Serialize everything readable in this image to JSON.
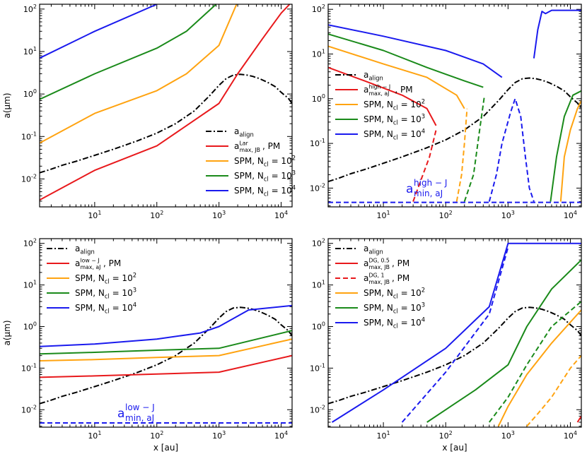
{
  "figure": {
    "ylabel": "a(μm)",
    "xlabel": "x [au]"
  },
  "chart_data": [
    {
      "type": "line",
      "panel": "top-left",
      "xscale": "log",
      "yscale": "log",
      "xlim": [
        1.3,
        15000
      ],
      "ylim": [
        0.0022,
        130
      ],
      "ylabel": "a(μm)",
      "xlabel": "",
      "legend_position": "lower-right",
      "legend": [
        {
          "main": "a",
          "sub": "align",
          "sup": "",
          "tail": ""
        },
        {
          "main": "a",
          "sub": "max, JB",
          "sup": "Lar",
          "tail": ", PM"
        },
        {
          "main": "SPM, N",
          "sub": "cl",
          "sup": "2",
          "tail": " = 10"
        },
        {
          "main": "SPM, N",
          "sub": "cl",
          "sup": "3",
          "tail": " = 10"
        },
        {
          "main": "SPM, N",
          "sub": "cl",
          "sup": "4",
          "tail": " = 10"
        }
      ],
      "annotation": null,
      "series": [
        {
          "name": "a_align",
          "color": "#000000",
          "dash": "dashdot",
          "x": [
            1.3,
            2,
            3,
            5,
            10,
            20,
            50,
            100,
            200,
            400,
            700,
            1000,
            1300,
            1700,
            2200,
            2800,
            3500,
            4500,
            6000,
            8000,
            10000,
            13000,
            15000
          ],
          "y": [
            0.014,
            0.017,
            0.021,
            0.026,
            0.036,
            0.05,
            0.08,
            0.12,
            0.2,
            0.4,
            0.9,
            1.6,
            2.3,
            2.8,
            2.9,
            2.8,
            2.6,
            2.3,
            1.9,
            1.5,
            1.1,
            0.8,
            0.6
          ]
        },
        {
          "name": "a_max,JB^Lar, PM",
          "color": "#e8191c",
          "dash": "solid",
          "x": [
            1.3,
            10,
            100,
            1000,
            2000,
            5000,
            10000,
            15000
          ],
          "y": [
            0.0032,
            0.016,
            0.06,
            0.6,
            3,
            20,
            80,
            150
          ]
        },
        {
          "name": "SPM, Ncl = 10^2",
          "color": "#ffa310",
          "dash": "solid",
          "x": [
            1.3,
            10,
            100,
            300,
            1000,
            2000
          ],
          "y": [
            0.07,
            0.35,
            1.2,
            3,
            14,
            150
          ]
        },
        {
          "name": "SPM, Ncl = 10^3",
          "color": "#1a8a1a",
          "dash": "solid",
          "x": [
            1.3,
            10,
            100,
            300,
            1000
          ],
          "y": [
            0.75,
            3,
            12,
            30,
            150
          ]
        },
        {
          "name": "SPM, Ncl = 10^4",
          "color": "#1a1aee",
          "dash": "solid",
          "x": [
            1.3,
            10,
            100
          ],
          "y": [
            7,
            30,
            130
          ]
        }
      ]
    },
    {
      "type": "line",
      "panel": "top-right",
      "xscale": "log",
      "yscale": "log",
      "xlim": [
        1.3,
        15000
      ],
      "ylim": [
        0.0038,
        130
      ],
      "ylabel": "",
      "xlabel": "",
      "legend_position": "center-left",
      "legend": [
        {
          "main": "a",
          "sub": "align",
          "sup": "",
          "tail": ""
        },
        {
          "main": "a",
          "sub": "max, aJ",
          "sup": "high − J",
          "tail": ", PM"
        },
        {
          "main": "SPM, N",
          "sub": "cl",
          "sup": "2",
          "tail": " = 10"
        },
        {
          "main": "SPM, N",
          "sub": "cl",
          "sup": "3",
          "tail": " = 10"
        },
        {
          "main": "SPM, N",
          "sub": "cl",
          "sup": "4",
          "tail": " = 10"
        }
      ],
      "annotation": {
        "main": "a",
        "sub": "min, aJ",
        "sup": "high − J",
        "color": "#1a1aee"
      },
      "series": [
        {
          "name": "a_align",
          "color": "#000000",
          "dash": "dashdot",
          "x": [
            1.3,
            2,
            3,
            5,
            10,
            20,
            50,
            100,
            200,
            400,
            700,
            1000,
            1300,
            1700,
            2200,
            2800,
            3500,
            4500,
            6000,
            8000,
            10000,
            13000,
            15000
          ],
          "y": [
            0.014,
            0.017,
            0.021,
            0.026,
            0.036,
            0.05,
            0.08,
            0.12,
            0.2,
            0.4,
            0.9,
            1.6,
            2.3,
            2.8,
            2.9,
            2.8,
            2.6,
            2.3,
            1.9,
            1.5,
            1.1,
            0.8,
            0.6
          ]
        },
        {
          "name": "a_max,aJ^high-J, PM",
          "color": "#e8191c",
          "dash": "solid",
          "x": [
            1.3,
            5,
            20,
            50,
            70
          ],
          "y": [
            5,
            2.5,
            1.2,
            0.6,
            0.25
          ]
        },
        {
          "name": "a_max,aJ^high-J, PM (dashed)",
          "color": "#e8191c",
          "dash": "dashed",
          "x": [
            30,
            40,
            55,
            70
          ],
          "y": [
            0.005,
            0.015,
            0.05,
            0.2
          ]
        },
        {
          "name": "SPM, Ncl = 10^2",
          "color": "#ffa310",
          "dash": "solid",
          "x": [
            1.3,
            10,
            50,
            150,
            200
          ],
          "y": [
            15,
            6,
            3,
            1.2,
            0.6
          ]
        },
        {
          "name": "SPM, Ncl = 10^2 (dashed)",
          "color": "#ffa310",
          "dash": "dashed",
          "x": [
            150,
            180,
            200,
            220
          ],
          "y": [
            0.005,
            0.02,
            0.1,
            0.6
          ]
        },
        {
          "name": "SPM, Ncl = 10^2 (right)",
          "color": "#ffa310",
          "dash": "solid",
          "x": [
            7000,
            8000,
            10000,
            13000,
            15000
          ],
          "y": [
            0.005,
            0.05,
            0.2,
            0.6,
            0.9
          ]
        },
        {
          "name": "SPM, Ncl = 10^3",
          "color": "#1a8a1a",
          "dash": "solid",
          "x": [
            1.3,
            10,
            50,
            200,
            400
          ],
          "y": [
            28,
            12,
            5,
            2.5,
            1.8
          ]
        },
        {
          "name": "SPM, Ncl = 10^3 (dashed)",
          "color": "#1a8a1a",
          "dash": "dashed",
          "x": [
            200,
            280,
            350,
            420
          ],
          "y": [
            0.005,
            0.02,
            0.2,
            1.2
          ]
        },
        {
          "name": "SPM, Ncl = 10^3 (right)",
          "color": "#1a8a1a",
          "dash": "solid",
          "x": [
            4800,
            6000,
            8000,
            11000,
            15000
          ],
          "y": [
            0.005,
            0.05,
            0.4,
            1.2,
            1.5
          ]
        },
        {
          "name": "SPM, Ncl = 10^4",
          "color": "#1a1aee",
          "dash": "solid",
          "x": [
            1.3,
            10,
            100,
            400,
            800
          ],
          "y": [
            45,
            25,
            12,
            6,
            3
          ]
        },
        {
          "name": "SPM, Ncl = 10^4 (dashed)",
          "color": "#1a1aee",
          "dash": "dashed",
          "x": [
            500,
            650,
            800,
            1100,
            1300,
            1600,
            1900,
            2200,
            2600
          ],
          "y": [
            0.005,
            0.02,
            0.1,
            0.5,
            1.0,
            0.4,
            0.05,
            0.01,
            0.005
          ]
        },
        {
          "name": "SPM, Ncl = 10^4 (right)",
          "color": "#1a1aee",
          "dash": "solid",
          "x": [
            2600,
            3000,
            3500,
            4000,
            5000,
            15000
          ],
          "y": [
            8,
            35,
            90,
            80,
            95,
            95
          ]
        },
        {
          "name": "a_min,aJ^high-J",
          "color": "#1a1aee",
          "dash": "dashed",
          "x": [
            1.3,
            15000
          ],
          "y": [
            0.0048,
            0.0048
          ]
        }
      ]
    },
    {
      "type": "line",
      "panel": "bottom-left",
      "xscale": "log",
      "yscale": "log",
      "xlim": [
        1.3,
        15000
      ],
      "ylim": [
        0.0038,
        130
      ],
      "ylabel": "a(μm)",
      "xlabel": "x [au]",
      "legend_position": "upper-left",
      "legend": [
        {
          "main": "a",
          "sub": "align",
          "sup": "",
          "tail": ""
        },
        {
          "main": "a",
          "sub": "max, aJ",
          "sup": "low − J",
          "tail": ", PM"
        },
        {
          "main": "SPM, N",
          "sub": "cl",
          "sup": "2",
          "tail": " = 10"
        },
        {
          "main": "SPM, N",
          "sub": "cl",
          "sup": "3",
          "tail": " = 10"
        },
        {
          "main": "SPM, N",
          "sub": "cl",
          "sup": "4",
          "tail": " = 10"
        }
      ],
      "annotation": {
        "main": "a",
        "sub": "min, aJ",
        "sup": "low − J",
        "color": "#1a1aee"
      },
      "series": [
        {
          "name": "a_align",
          "color": "#000000",
          "dash": "dashdot",
          "x": [
            1.3,
            2,
            3,
            5,
            10,
            20,
            50,
            100,
            200,
            400,
            700,
            1000,
            1300,
            1700,
            2200,
            2800,
            3500,
            4500,
            6000,
            8000,
            10000,
            13000,
            15000
          ],
          "y": [
            0.014,
            0.017,
            0.021,
            0.026,
            0.036,
            0.05,
            0.08,
            0.12,
            0.2,
            0.4,
            0.9,
            1.6,
            2.3,
            2.8,
            2.9,
            2.8,
            2.6,
            2.3,
            1.9,
            1.5,
            1.1,
            0.8,
            0.6
          ]
        },
        {
          "name": "a_max,aJ^low-J, PM",
          "color": "#e8191c",
          "dash": "solid",
          "x": [
            1.3,
            10,
            100,
            1000,
            15000
          ],
          "y": [
            0.06,
            0.065,
            0.072,
            0.08,
            0.2
          ]
        },
        {
          "name": "SPM, Ncl = 10^2",
          "color": "#ffa310",
          "dash": "solid",
          "x": [
            1.3,
            10,
            100,
            1000,
            15000
          ],
          "y": [
            0.15,
            0.16,
            0.18,
            0.2,
            0.5
          ]
        },
        {
          "name": "SPM, Ncl = 10^3",
          "color": "#1a8a1a",
          "dash": "solid",
          "x": [
            1.3,
            10,
            100,
            1000,
            15000
          ],
          "y": [
            0.22,
            0.24,
            0.27,
            0.3,
            0.8
          ]
        },
        {
          "name": "SPM, Ncl = 10^4",
          "color": "#1a1aee",
          "dash": "solid",
          "x": [
            1.3,
            10,
            100,
            500,
            1000,
            3000,
            15000
          ],
          "y": [
            0.33,
            0.38,
            0.5,
            0.7,
            1.0,
            2.5,
            3.2
          ]
        },
        {
          "name": "a_min,aJ^low-J",
          "color": "#1a1aee",
          "dash": "dashed",
          "x": [
            1.3,
            15000
          ],
          "y": [
            0.0048,
            0.0048
          ]
        }
      ]
    },
    {
      "type": "line",
      "panel": "bottom-right",
      "xscale": "log",
      "yscale": "log",
      "xlim": [
        1.3,
        15000
      ],
      "ylim": [
        0.0038,
        130
      ],
      "ylabel": "",
      "xlabel": "x [au]",
      "legend_position": "upper-left",
      "legend": [
        {
          "main": "a",
          "sub": "align",
          "sup": "",
          "tail": ""
        },
        {
          "main": "a",
          "sub": "max, JB",
          "sup": "DG, 0.5",
          "tail": ", PM"
        },
        {
          "main": "a",
          "sub": "max, JB",
          "sup": "DG, 1",
          "tail": ", PM"
        },
        {
          "main": "SPM, N",
          "sub": "cl",
          "sup": "2",
          "tail": " = 10"
        },
        {
          "main": "SPM, N",
          "sub": "cl",
          "sup": "3",
          "tail": " = 10"
        },
        {
          "main": "SPM, N",
          "sub": "cl",
          "sup": "4",
          "tail": " = 10"
        }
      ],
      "annotation": null,
      "series": [
        {
          "name": "a_align",
          "color": "#000000",
          "dash": "dashdot",
          "x": [
            1.3,
            2,
            3,
            5,
            10,
            20,
            50,
            100,
            200,
            400,
            700,
            1000,
            1300,
            1700,
            2200,
            2800,
            3500,
            4500,
            6000,
            8000,
            10000,
            13000,
            15000
          ],
          "y": [
            0.014,
            0.017,
            0.021,
            0.026,
            0.036,
            0.05,
            0.08,
            0.12,
            0.2,
            0.4,
            0.9,
            1.6,
            2.3,
            2.8,
            2.9,
            2.8,
            2.6,
            2.3,
            1.9,
            1.5,
            1.1,
            0.8,
            0.6
          ]
        },
        {
          "name": "a_max,JB^DG,0.5, PM",
          "color": "#e8191c",
          "dash": "solid",
          "x": [
            13000,
            15000
          ],
          "y": [
            0.005,
            0.007
          ]
        },
        {
          "name": "a_max,JB^DG,1, PM",
          "color": "#e8191c",
          "dash": "dashed",
          "x": [],
          "y": []
        },
        {
          "name": "SPM, Ncl = 10^2",
          "color": "#ffa310",
          "dash": "solid",
          "x": [
            700,
            1000,
            2000,
            5000,
            15000
          ],
          "y": [
            0.004,
            0.012,
            0.07,
            0.4,
            2.5
          ]
        },
        {
          "name": "SPM, Ncl = 10^2 (dashed)",
          "color": "#ffa310",
          "dash": "dashed",
          "x": [
            2000,
            3000,
            5000,
            10000,
            15000
          ],
          "y": [
            0.004,
            0.008,
            0.02,
            0.1,
            0.2
          ]
        },
        {
          "name": "SPM, Ncl = 10^3",
          "color": "#1a8a1a",
          "dash": "solid",
          "x": [
            50,
            300,
            1000,
            2000,
            5000,
            15000
          ],
          "y": [
            0.005,
            0.03,
            0.12,
            1,
            8,
            40
          ]
        },
        {
          "name": "SPM, Ncl = 10^3 (dashed)",
          "color": "#1a8a1a",
          "dash": "dashed",
          "x": [
            500,
            1000,
            2000,
            5000,
            15000
          ],
          "y": [
            0.005,
            0.02,
            0.12,
            1.0,
            4
          ]
        },
        {
          "name": "SPM, Ncl = 10^4",
          "color": "#1a1aee",
          "dash": "solid",
          "x": [
            1.5,
            10,
            100,
            500,
            1000,
            15000
          ],
          "y": [
            0.005,
            0.03,
            0.3,
            3,
            100,
            100
          ]
        },
        {
          "name": "SPM, Ncl = 10^4 (dashed)",
          "color": "#1a1aee",
          "dash": "dashed",
          "x": [
            20,
            100,
            500,
            1000
          ],
          "y": [
            0.005,
            0.08,
            2,
            80
          ]
        }
      ]
    }
  ]
}
